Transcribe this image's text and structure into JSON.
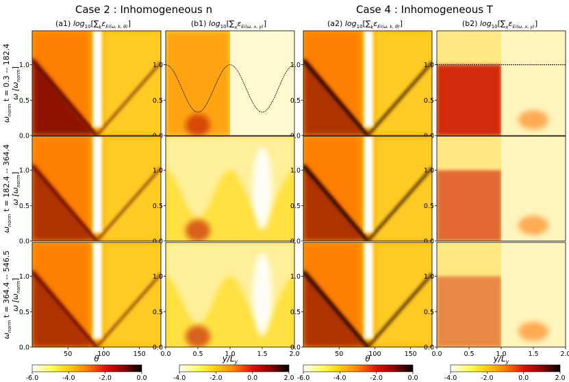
{
  "case_titles": [
    "Case 2 : Inhomogeneous n",
    "Case 4 : Inhomogeneous T"
  ],
  "column_titles": [
    {
      "prefix": "(a1) ",
      "main": "log",
      "sub": "10",
      "bracket": "[∑",
      "sum_sub": "k",
      "eps": "ε",
      "eps_sub": "Ei(ω, k, θ)",
      "close": "]"
    },
    {
      "prefix": "(b1) ",
      "main": "log",
      "sub": "10",
      "bracket": "[∑",
      "sum_sub": "x",
      "eps": "ε",
      "eps_sub": "Ei(ω, x, y)",
      "close": "]"
    },
    {
      "prefix": "(a2) ",
      "main": "log",
      "sub": "10",
      "bracket": "[∑",
      "sum_sub": "k",
      "eps": "ε",
      "eps_sub": "Ei(ω, k, θ)",
      "close": "]"
    },
    {
      "prefix": "(b2) ",
      "main": "log",
      "sub": "10",
      "bracket": "[∑",
      "sum_sub": "x",
      "eps": "ε",
      "eps_sub": "Ei(ω, x, y)",
      "close": "]"
    }
  ],
  "row_labels": [
    {
      "main": "ω",
      "sub": "norm",
      "time": " t = 0.3 -- 182.4"
    },
    {
      "main": "ω",
      "sub": "norm",
      "time": " t = 182.4 -- 364.4"
    },
    {
      "main": "ω",
      "sub": "norm",
      "time": " t = 364.4 -- 546.5"
    }
  ],
  "y_axis_label": {
    "main": "ω [ω",
    "sub": "norm",
    "close": "]"
  },
  "x_axis_labels": {
    "theta": "θ",
    "ypos": {
      "main": "y/L",
      "sub": "y"
    }
  },
  "chart_data": {
    "type": "heatmap",
    "panels_grid": {
      "rows": 3,
      "columns": 4
    },
    "y_axis": {
      "quantity": "ω",
      "unit": "ω_norm",
      "range": [
        0.0,
        1.48
      ],
      "ticks": [
        0.0,
        0.5,
        1.0
      ]
    },
    "x_axis_theta": {
      "range": [
        0,
        180
      ],
      "ticks": [
        50,
        100,
        150
      ]
    },
    "x_axis_y": {
      "range": [
        0.0,
        2.0
      ],
      "ticks": [
        0.0,
        0.5,
        1.0,
        1.5,
        2.0
      ]
    },
    "colorbars": [
      {
        "range": [
          -6.0,
          0.0
        ],
        "ticks": [
          "-6.0",
          "-4.0",
          "-2.0",
          "0.0"
        ],
        "applies_to": [
          "a1",
          "a2"
        ]
      },
      {
        "range": [
          -4.0,
          2.0
        ],
        "ticks": [
          "-4.0",
          "-2.0",
          "0.0",
          "2.0"
        ],
        "applies_to": [
          "b1",
          "b2"
        ]
      }
    ],
    "colormap": "hot_r",
    "colormap_stops": [
      "#ffffff",
      "#ffff60",
      "#ffd000",
      "#ff8000",
      "#e01000",
      "#900000",
      "#000000"
    ],
    "overlay_curves": {
      "b1": "cosine: ω = 1.0 at y/L_y = 0, 1, 2; minimum ≈ 0.33 at y/L_y = 0.5, 1.5",
      "b2": "horizontal line at ω = 1.0"
    },
    "features": {
      "a_columns": "V-shaped dark ridges meeting at θ ≈ 90 with ω → 0; white vertical band near θ ≈ 90",
      "b1": "bright region inside the cosine curve; darker outside",
      "b2": "uniform dark band below ω ≈ 1.0 for y/L_y < 1; light for y/L_y > 1"
    }
  }
}
